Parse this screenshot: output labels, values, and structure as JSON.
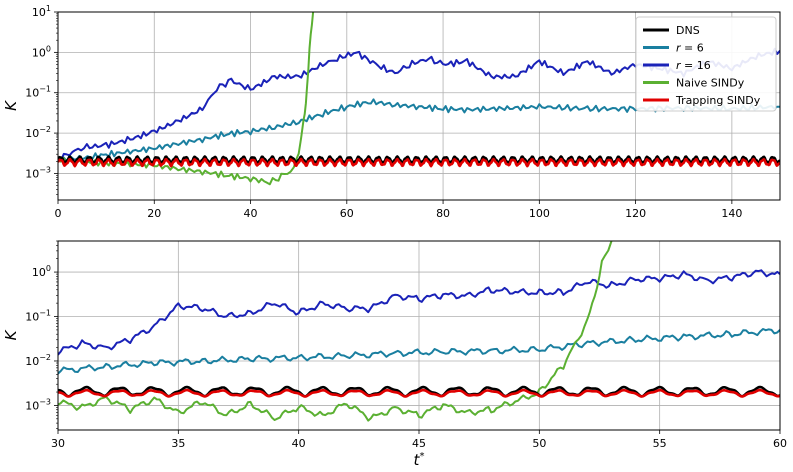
{
  "chart_data": [
    {
      "type": "line",
      "ylabel": "K",
      "xlabel": "",
      "xlim": [
        0,
        150
      ],
      "ylim": [
        0.00022,
        10
      ],
      "yscale": "log",
      "grid": true,
      "legend_position": "top-right",
      "xticks": [
        "0",
        "20",
        "40",
        "60",
        "80",
        "100",
        "120",
        "140"
      ],
      "yticks": [
        {
          "base": "10",
          "exp": "1"
        },
        {
          "base": "10",
          "exp": "0"
        },
        {
          "base": "10",
          "exp": "−1"
        },
        {
          "base": "10",
          "exp": "−2"
        },
        {
          "base": "10",
          "exp": "−3"
        }
      ],
      "legend": [
        {
          "label": "DNS",
          "color": "#000000"
        },
        {
          "label_prefix": "r",
          "label_rest": " = 6",
          "color": "#1a7fa0"
        },
        {
          "label_prefix": "r",
          "label_rest": " = 16",
          "color": "#1a22b8"
        },
        {
          "label": "Naive SINDy",
          "color": "#5bb032"
        },
        {
          "label": "Trapping SINDy",
          "color": "#e00000"
        }
      ],
      "series": [
        {
          "name": "r = 6",
          "color": "#1a7fa0",
          "x": [
            0,
            5,
            10,
            15,
            20,
            25,
            30,
            35,
            40,
            45,
            50,
            55,
            60,
            65,
            70,
            75,
            80,
            85,
            90,
            95,
            100,
            110,
            120,
            130,
            140,
            150
          ],
          "y": [
            0.0022,
            0.0024,
            0.0029,
            0.0035,
            0.0042,
            0.0055,
            0.007,
            0.0095,
            0.011,
            0.014,
            0.019,
            0.03,
            0.045,
            0.06,
            0.05,
            0.045,
            0.04,
            0.038,
            0.04,
            0.042,
            0.045,
            0.04,
            0.04,
            0.042,
            0.04,
            0.045
          ]
        },
        {
          "name": "r = 16",
          "color": "#1a22b8",
          "x": [
            0,
            3,
            6,
            10,
            15,
            20,
            25,
            30,
            33,
            36,
            40,
            45,
            50,
            55,
            58,
            62,
            66,
            70,
            73,
            77,
            80,
            85,
            90,
            95,
            100,
            105,
            110,
            115,
            120,
            125,
            130,
            135,
            140,
            145,
            150
          ],
          "y": [
            0.0022,
            0.0035,
            0.0045,
            0.005,
            0.007,
            0.011,
            0.02,
            0.04,
            0.13,
            0.2,
            0.12,
            0.25,
            0.25,
            0.5,
            0.7,
            1.0,
            0.5,
            0.3,
            0.5,
            0.7,
            0.5,
            0.6,
            0.25,
            0.25,
            0.6,
            0.3,
            0.6,
            0.3,
            0.5,
            0.4,
            0.3,
            0.6,
            0.4,
            0.8,
            1.1
          ]
        },
        {
          "name": "Naive SINDy",
          "color": "#5bb032",
          "x": [
            0,
            5,
            10,
            15,
            20,
            25,
            30,
            35,
            40,
            44,
            47,
            49,
            50,
            51,
            51.5,
            52,
            52.5,
            53
          ],
          "y": [
            0.0022,
            0.0019,
            0.0018,
            0.0017,
            0.0016,
            0.0013,
            0.0011,
            0.0009,
            0.00075,
            0.0006,
            0.0009,
            0.0015,
            0.003,
            0.02,
            0.05,
            0.4,
            3,
            10
          ]
        },
        {
          "name": "DNS",
          "color": "#000000",
          "center": 0.0022,
          "amplitude": 0.00035,
          "period": 2.0,
          "x_range": [
            0,
            150
          ]
        },
        {
          "name": "Trapping SINDy",
          "color": "#e00000",
          "center": 0.0019,
          "amplitude": 0.0003,
          "period": 2.0,
          "x_range": [
            0,
            150
          ]
        }
      ]
    },
    {
      "type": "line",
      "ylabel": "K",
      "xlabel_var": "t",
      "xlabel_sup": "*",
      "xlim": [
        30,
        60
      ],
      "ylim": [
        0.00028,
        5
      ],
      "yscale": "log",
      "grid": true,
      "xticks": [
        "30",
        "35",
        "40",
        "45",
        "50",
        "55",
        "60"
      ],
      "yticks": [
        {
          "base": "10",
          "exp": "0"
        },
        {
          "base": "10",
          "exp": "−1"
        },
        {
          "base": "10",
          "exp": "−2"
        },
        {
          "base": "10",
          "exp": "−3"
        }
      ],
      "series": [
        {
          "name": "r = 16",
          "color": "#1a22b8",
          "x": [
            30,
            31,
            32,
            33,
            34,
            35,
            36,
            37,
            38,
            39,
            40,
            41,
            42,
            43,
            44,
            45,
            46,
            47,
            48,
            49,
            50,
            51,
            52,
            53,
            54,
            55,
            56,
            57,
            58,
            59,
            60
          ],
          "y": [
            0.016,
            0.025,
            0.02,
            0.03,
            0.06,
            0.18,
            0.15,
            0.1,
            0.12,
            0.2,
            0.12,
            0.2,
            0.15,
            0.15,
            0.3,
            0.25,
            0.3,
            0.3,
            0.4,
            0.35,
            0.35,
            0.35,
            0.6,
            0.5,
            0.7,
            0.7,
            0.9,
            0.65,
            0.75,
            1.0,
            0.9
          ]
        },
        {
          "name": "r = 6",
          "color": "#1a7fa0",
          "x": [
            30,
            32,
            34,
            36,
            38,
            40,
            42,
            44,
            46,
            48,
            50,
            52,
            54,
            56,
            58,
            60
          ],
          "y": [
            0.006,
            0.0075,
            0.009,
            0.01,
            0.011,
            0.012,
            0.013,
            0.015,
            0.016,
            0.017,
            0.018,
            0.025,
            0.03,
            0.035,
            0.04,
            0.05
          ]
        },
        {
          "name": "Naive SINDy",
          "color": "#5bb032",
          "x": [
            30,
            31,
            32,
            33,
            34,
            35,
            36,
            37,
            38,
            39,
            40,
            41,
            42,
            43,
            44,
            45,
            46,
            47,
            48,
            49,
            50,
            50.5,
            51,
            51.5,
            52,
            52.3,
            52.6,
            53
          ],
          "y": [
            0.0012,
            0.0009,
            0.0015,
            0.0008,
            0.0014,
            0.0007,
            0.0012,
            0.0006,
            0.0011,
            0.0005,
            0.0009,
            0.0006,
            0.0011,
            0.0005,
            0.0009,
            0.0006,
            0.001,
            0.0007,
            0.0008,
            0.0012,
            0.002,
            0.004,
            0.008,
            0.025,
            0.08,
            0.3,
            1.5,
            5
          ]
        },
        {
          "name": "DNS",
          "color": "#000000",
          "center": 0.0021,
          "amplitude": 0.0004,
          "period": 1.4,
          "x_range": [
            30,
            60
          ]
        },
        {
          "name": "Trapping SINDy",
          "color": "#e00000",
          "center": 0.0019,
          "amplitude": 0.00025,
          "period": 1.4,
          "x_range": [
            30,
            60
          ]
        }
      ]
    }
  ]
}
